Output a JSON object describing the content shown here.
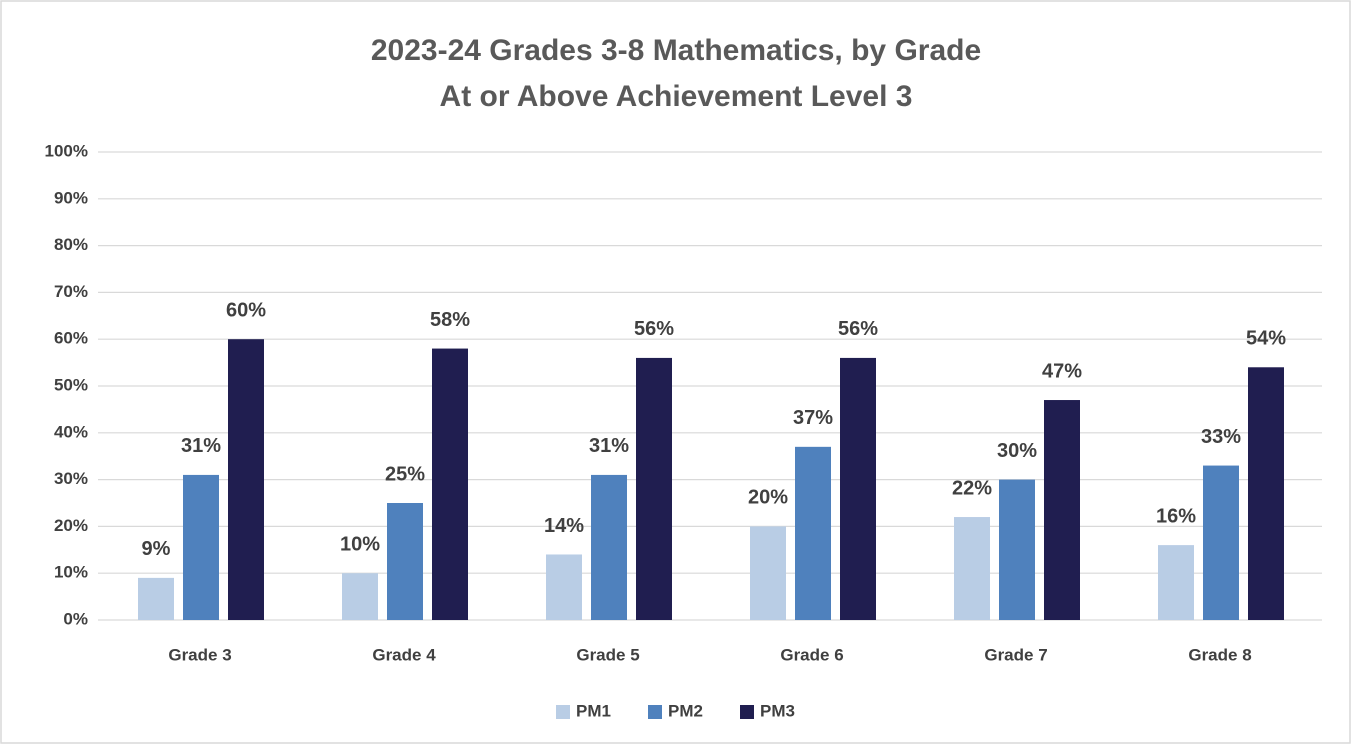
{
  "chart_data": {
    "type": "bar",
    "title": "2023-24 Grades 3-8 Mathematics, by Grade",
    "subtitle": "At or Above Achievement Level 3",
    "categories": [
      "Grade 3",
      "Grade 4",
      "Grade 5",
      "Grade 6",
      "Grade 7",
      "Grade 8"
    ],
    "series": [
      {
        "name": "PM1",
        "color": "#b9cde5",
        "values": [
          9,
          10,
          14,
          20,
          22,
          16
        ],
        "value_labels": [
          "9%",
          "10%",
          "14%",
          "20%",
          "22%",
          "16%"
        ]
      },
      {
        "name": "PM2",
        "color": "#4f81bd",
        "values": [
          31,
          25,
          31,
          37,
          30,
          33
        ],
        "value_labels": [
          "31%",
          "25%",
          "31%",
          "37%",
          "30%",
          "33%"
        ]
      },
      {
        "name": "PM3",
        "color": "#201e50",
        "values": [
          60,
          58,
          56,
          56,
          47,
          54
        ],
        "value_labels": [
          "60%",
          "58%",
          "56%",
          "56%",
          "47%",
          "54%"
        ]
      }
    ],
    "ylim": [
      0,
      100
    ],
    "yticks": [
      {
        "value": 0,
        "label": "0%"
      },
      {
        "value": 10,
        "label": "10%"
      },
      {
        "value": 20,
        "label": "20%"
      },
      {
        "value": 30,
        "label": "30%"
      },
      {
        "value": 40,
        "label": "40%"
      },
      {
        "value": 50,
        "label": "50%"
      },
      {
        "value": 60,
        "label": "60%"
      },
      {
        "value": 70,
        "label": "70%"
      },
      {
        "value": 80,
        "label": "80%"
      },
      {
        "value": 90,
        "label": "90%"
      },
      {
        "value": 100,
        "label": "100%"
      }
    ],
    "grid": true,
    "legend": "bottom"
  }
}
